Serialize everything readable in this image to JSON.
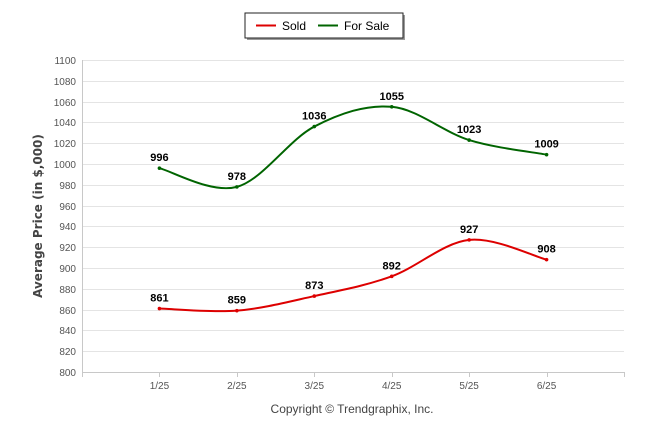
{
  "chart_data": {
    "type": "line",
    "categories": [
      "1/25",
      "2/25",
      "3/25",
      "4/25",
      "5/25",
      "6/25"
    ],
    "series": [
      {
        "name": "Sold",
        "values": [
          861,
          859,
          873,
          892,
          927,
          908
        ],
        "color": "#dd0000"
      },
      {
        "name": "For Sale",
        "values": [
          996,
          978,
          1036,
          1055,
          1023,
          1009
        ],
        "color": "#006400"
      }
    ],
    "title": "",
    "xlabel": "",
    "ylabel": "Average Price (in $,000)",
    "ylim": [
      800,
      1100
    ],
    "yticks": [
      800,
      820,
      840,
      860,
      880,
      900,
      920,
      940,
      960,
      980,
      1000,
      1020,
      1040,
      1060,
      1080,
      1100
    ],
    "grid": true,
    "legend_position": "top-center"
  },
  "footer": {
    "copyright": "Copyright © Trendgraphix, Inc."
  }
}
